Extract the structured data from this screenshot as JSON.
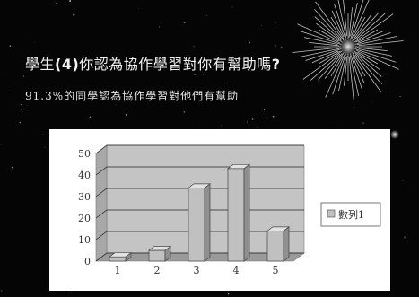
{
  "slide": {
    "title_pre": "學生",
    "title_bold": "(4)",
    "title_post": "你認為協作學習對你有幫助嗎",
    "title_bold2": "?",
    "subtitle": "91.3%的同學認為協作學習對他們有幫助"
  },
  "chart_data": {
    "type": "bar",
    "title": "",
    "xlabel": "",
    "ylabel": "",
    "categories": [
      "1",
      "2",
      "3",
      "4",
      "5"
    ],
    "series": [
      {
        "name": "數列1",
        "values": [
          2,
          5,
          34,
          43,
          14
        ]
      }
    ],
    "ylim": [
      0,
      50
    ],
    "yticks": [
      "0",
      "10",
      "20",
      "30",
      "40",
      "50"
    ],
    "grid": true,
    "legend": "right",
    "bar_color": "#c0c0c0"
  }
}
